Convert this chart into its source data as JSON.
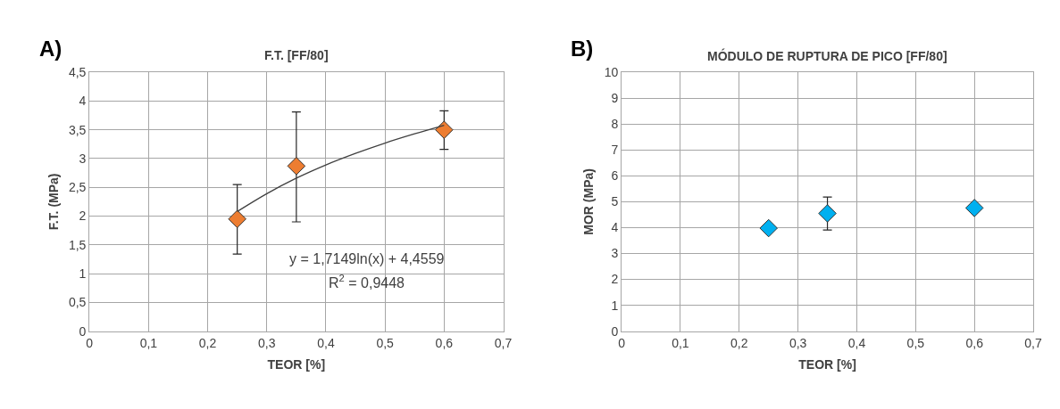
{
  "chart_data": [
    {
      "type": "scatter",
      "title": "F.T. [FF/80]",
      "xlabel": "TEOR [%]",
      "ylabel": "F.T. (MPa)",
      "annotations": [
        "A)",
        "y = 1,7149ln(x) + 4,4559",
        "R$^{2}$ = 0,9448"
      ],
      "x": [
        0.25,
        0.35,
        0.6
      ],
      "series": [
        {
          "color": "#ed7d31",
          "values": [
            1.95,
            2.87,
            3.5
          ],
          "errors": [
            [
              1.34,
              2.55
            ],
            [
              1.9,
              3.81
            ],
            [
              3.16,
              3.83
            ]
          ]
        },
        {
          "type": "line",
          "color": "#404040",
          "marker": "none",
          "x": [
            0.25,
            0.3,
            0.35,
            0.4,
            0.45,
            0.5,
            0.55,
            0.6
          ],
          "values": [
            2.08,
            2.39,
            2.66,
            2.89,
            3.09,
            3.27,
            3.43,
            3.58
          ]
        }
      ],
      "xlim": [
        0,
        0.7
      ],
      "xticks": [
        0,
        {
          "value": 0.1,
          "label": "0,1"
        },
        {
          "value": 0.2,
          "label": "0,2"
        },
        {
          "value": 0.3,
          "label": "0,3"
        },
        {
          "value": 0.4,
          "label": "0,4"
        },
        {
          "value": 0.5,
          "label": "0,5"
        },
        {
          "value": 0.6,
          "label": "0,6"
        },
        {
          "value": 0.7,
          "label": "0,7"
        }
      ],
      "ylim": [
        0,
        4.5
      ],
      "yticks": [
        0,
        {
          "value": 0.5,
          "label": "0,5"
        },
        1,
        {
          "value": 1.5,
          "label": "1,5"
        },
        2,
        {
          "value": 2.5,
          "label": "2,5"
        },
        3,
        {
          "value": 3.5,
          "label": "3,5"
        },
        4,
        {
          "value": 4.5,
          "label": "4,5"
        }
      ],
      "grid": true,
      "marker": "diamond"
    },
    {
      "type": "scatter",
      "title": "MÓDULO DE RUPTURA DE PICO [FF/80]",
      "xlabel": "TEOR [%]",
      "ylabel": "MOR (MPa)",
      "annotations": [
        "B)"
      ],
      "x": [
        0.25,
        0.35,
        0.6
      ],
      "series": [
        {
          "color": "#00b0f0",
          "values": [
            3.98,
            4.55,
            4.76
          ],
          "errors": [
            null,
            [
              3.91,
              5.18
            ],
            null
          ]
        }
      ],
      "xlim": [
        0,
        0.7
      ],
      "xticks": [
        0,
        {
          "value": 0.1,
          "label": "0,1"
        },
        {
          "value": 0.2,
          "label": "0,2"
        },
        {
          "value": 0.3,
          "label": "0,3"
        },
        {
          "value": 0.4,
          "label": "0,4"
        },
        {
          "value": 0.5,
          "label": "0,5"
        },
        {
          "value": 0.6,
          "label": "0,6"
        },
        {
          "value": 0.7,
          "label": "0,7"
        }
      ],
      "ylim": [
        0,
        10
      ],
      "yticks": [
        0,
        1,
        2,
        3,
        4,
        5,
        6,
        7,
        8,
        9,
        10
      ],
      "grid": true,
      "marker": "diamond"
    }
  ]
}
